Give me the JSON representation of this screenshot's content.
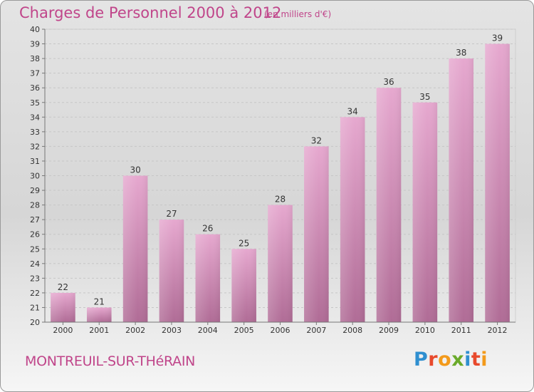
{
  "title": "Charges de Personnel 2000 à 2012",
  "subtitle": "(en milliers d'€)",
  "place": "MONTREUIL-SUR-THéRAIN",
  "logo": {
    "letters": [
      "P",
      "r",
      "o",
      "x",
      "i",
      "t",
      "i"
    ],
    "colors": [
      "#2f8fd0",
      "#e8492c",
      "#f39a1b",
      "#6aaa2a",
      "#2f8fd0",
      "#e8492c",
      "#f39a1b"
    ]
  },
  "colors": {
    "bar_top": "#e6a8cf",
    "bar_bottom": "#b06c96",
    "text": "#c0458a"
  },
  "chart_data": {
    "type": "bar",
    "categories": [
      "2000",
      "2001",
      "2002",
      "2003",
      "2004",
      "2005",
      "2006",
      "2007",
      "2008",
      "2009",
      "2010",
      "2011",
      "2012"
    ],
    "values": [
      22,
      21,
      30,
      27,
      26,
      25,
      28,
      32,
      34,
      36,
      35,
      38,
      39
    ],
    "title": "Charges de Personnel 2000 à 2012",
    "subtitle": "(en milliers d'€)",
    "xlabel": "",
    "ylabel": "",
    "ylim": [
      20,
      40
    ],
    "yticks": [
      20,
      21,
      22,
      23,
      24,
      25,
      26,
      27,
      28,
      29,
      30,
      31,
      32,
      33,
      34,
      35,
      36,
      37,
      38,
      39,
      40
    ],
    "grid": true,
    "legend": "none"
  }
}
